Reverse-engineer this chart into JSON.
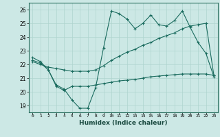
{
  "xlabel": "Humidex (Indice chaleur)",
  "ylabel": "",
  "bg_color": "#cce8e5",
  "line_color": "#1a6b5e",
  "grid_color": "#afd4cf",
  "xlim": [
    -0.5,
    23.5
  ],
  "ylim": [
    18.5,
    26.5
  ],
  "yticks": [
    19,
    20,
    21,
    22,
    23,
    24,
    25,
    26
  ],
  "xticks": [
    0,
    1,
    2,
    3,
    4,
    5,
    6,
    7,
    8,
    9,
    10,
    11,
    12,
    13,
    14,
    15,
    16,
    17,
    18,
    19,
    20,
    21,
    22,
    23
  ],
  "line1_x": [
    0,
    1,
    2,
    3,
    4,
    5,
    6,
    7,
    8,
    9,
    10,
    11,
    12,
    13,
    14,
    15,
    16,
    17,
    18,
    19,
    20,
    21,
    22,
    23
  ],
  "line1_y": [
    22.5,
    22.2,
    21.6,
    20.5,
    20.2,
    19.4,
    18.8,
    18.8,
    20.3,
    23.2,
    25.9,
    25.7,
    25.3,
    24.6,
    25.0,
    25.6,
    24.9,
    24.8,
    25.2,
    25.9,
    24.7,
    23.6,
    22.8,
    21.1
  ],
  "line2_x": [
    0,
    1,
    2,
    3,
    4,
    5,
    6,
    7,
    8,
    9,
    10,
    11,
    12,
    13,
    14,
    15,
    16,
    17,
    18,
    19,
    20,
    21,
    22,
    23
  ],
  "line2_y": [
    22.2,
    22.0,
    21.8,
    21.7,
    21.6,
    21.5,
    21.5,
    21.5,
    21.6,
    21.9,
    22.3,
    22.6,
    22.9,
    23.1,
    23.4,
    23.6,
    23.9,
    24.1,
    24.3,
    24.6,
    24.8,
    24.9,
    25.0,
    21.2
  ],
  "line3_x": [
    0,
    1,
    2,
    3,
    4,
    5,
    6,
    7,
    8,
    9,
    10,
    11,
    12,
    13,
    14,
    15,
    16,
    17,
    18,
    19,
    20,
    21,
    22,
    23
  ],
  "line3_y": [
    22.3,
    22.1,
    21.6,
    20.4,
    20.1,
    20.4,
    20.4,
    20.4,
    20.5,
    20.6,
    20.7,
    20.8,
    20.85,
    20.9,
    21.0,
    21.1,
    21.15,
    21.2,
    21.25,
    21.3,
    21.3,
    21.3,
    21.3,
    21.2
  ]
}
